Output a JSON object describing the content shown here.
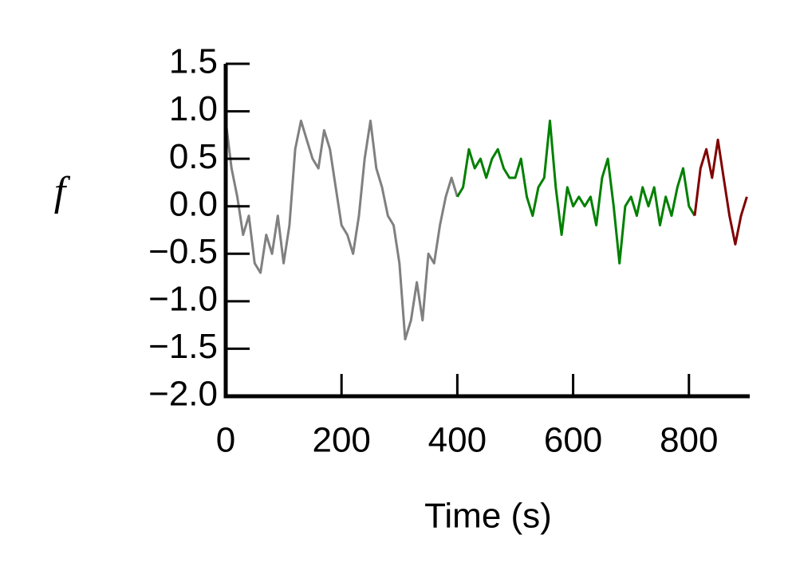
{
  "chart_data": {
    "type": "line",
    "x_label": "Time (s)",
    "y_label": "f",
    "x": [
      0,
      10,
      20,
      30,
      40,
      50,
      60,
      70,
      80,
      90,
      100,
      110,
      120,
      130,
      140,
      150,
      160,
      170,
      180,
      190,
      200,
      210,
      220,
      230,
      240,
      250,
      260,
      270,
      280,
      290,
      300,
      310,
      320,
      330,
      340,
      350,
      360,
      370,
      380,
      390,
      400,
      410,
      420,
      430,
      440,
      450,
      460,
      470,
      480,
      490,
      500,
      510,
      520,
      530,
      540,
      550,
      560,
      570,
      580,
      590,
      600,
      610,
      620,
      630,
      640,
      650,
      660,
      670,
      680,
      690,
      700,
      710,
      720,
      730,
      740,
      750,
      760,
      770,
      780,
      790,
      800,
      810,
      820,
      830,
      840,
      850,
      860,
      870,
      880,
      890,
      900
    ],
    "series": [
      {
        "color": "#808080",
        "values": [
          0.9,
          0.4,
          0.1,
          -0.3,
          -0.1,
          -0.6,
          -0.7,
          -0.3,
          -0.5,
          -0.1,
          -0.6,
          -0.2,
          0.6,
          0.9,
          0.7,
          0.5,
          0.4,
          0.8,
          0.6,
          0.2,
          -0.2,
          -0.3,
          -0.5,
          -0.1,
          0.5,
          0.9,
          0.4,
          0.2,
          -0.1,
          -0.2,
          -0.6,
          -1.4,
          -1.2,
          -0.8,
          -1.2,
          -0.5,
          -0.6,
          -0.2,
          0.1,
          0.3,
          0.1,
          null,
          null,
          null,
          null,
          null,
          null,
          null,
          null,
          null,
          null,
          null,
          null,
          null,
          null,
          null,
          null,
          null,
          null,
          null,
          null,
          null,
          null,
          null,
          null,
          null,
          null,
          null,
          null,
          null,
          null,
          null,
          null,
          null,
          null,
          null,
          null,
          null,
          null,
          null,
          null,
          null,
          null,
          null,
          null,
          null,
          null,
          null,
          null,
          null,
          null
        ]
      },
      {
        "color": "#008000",
        "values": [
          null,
          null,
          null,
          null,
          null,
          null,
          null,
          null,
          null,
          null,
          null,
          null,
          null,
          null,
          null,
          null,
          null,
          null,
          null,
          null,
          null,
          null,
          null,
          null,
          null,
          null,
          null,
          null,
          null,
          null,
          null,
          null,
          null,
          null,
          null,
          null,
          null,
          null,
          null,
          null,
          0.1,
          0.2,
          0.6,
          0.4,
          0.5,
          0.3,
          0.5,
          0.6,
          0.4,
          0.3,
          0.3,
          0.5,
          0.1,
          -0.1,
          0.2,
          0.3,
          0.9,
          0.2,
          -0.3,
          0.2,
          0.0,
          0.1,
          0.0,
          0.1,
          -0.2,
          0.3,
          0.5,
          0.0,
          -0.6,
          0.0,
          0.1,
          -0.1,
          0.2,
          0.0,
          0.2,
          -0.2,
          0.1,
          -0.1,
          0.2,
          0.4,
          0.0,
          -0.1,
          null,
          null,
          null,
          null,
          null,
          null,
          null,
          null,
          null
        ]
      },
      {
        "color": "#800000",
        "values": [
          null,
          null,
          null,
          null,
          null,
          null,
          null,
          null,
          null,
          null,
          null,
          null,
          null,
          null,
          null,
          null,
          null,
          null,
          null,
          null,
          null,
          null,
          null,
          null,
          null,
          null,
          null,
          null,
          null,
          null,
          null,
          null,
          null,
          null,
          null,
          null,
          null,
          null,
          null,
          null,
          null,
          null,
          null,
          null,
          null,
          null,
          null,
          null,
          null,
          null,
          null,
          null,
          null,
          null,
          null,
          null,
          null,
          null,
          null,
          null,
          null,
          null,
          null,
          null,
          null,
          null,
          null,
          null,
          null,
          null,
          null,
          null,
          null,
          null,
          null,
          null,
          null,
          null,
          null,
          null,
          null,
          -0.1,
          0.4,
          0.6,
          0.3,
          0.7,
          0.3,
          -0.1,
          -0.4,
          -0.1,
          0.1
        ]
      }
    ],
    "xlim": [
      0,
      905
    ],
    "ylim": [
      -2.0,
      1.5
    ],
    "xticks": [
      0,
      200,
      400,
      600,
      800
    ],
    "yticks": [
      {
        "value": -2.0,
        "label": "−2.0"
      },
      {
        "value": -1.5,
        "label": "−1.5"
      },
      {
        "value": -1.0,
        "label": "−1.0"
      },
      {
        "value": -0.5,
        "label": "−0.5"
      },
      {
        "value": 0.0,
        "label": "0.0"
      },
      0.5,
      {
        "value": 1.0,
        "label": "1.0"
      },
      1.5
    ],
    "grid": false
  }
}
